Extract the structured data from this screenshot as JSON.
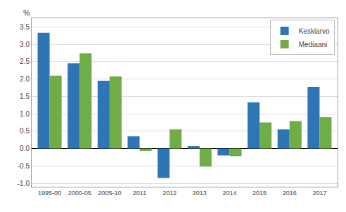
{
  "chart_data": {
    "type": "bar",
    "ylabel": "%",
    "categories": [
      "1995-00",
      "2000-05",
      "2005-10",
      "2011",
      "2012",
      "2013",
      "2014",
      "2015",
      "2016",
      "2017"
    ],
    "series": [
      {
        "name": "Keskiarvo",
        "color": "#2E75B6",
        "values": [
          3.33,
          2.45,
          1.95,
          0.35,
          -0.85,
          0.07,
          -0.2,
          1.33,
          0.55,
          1.77
        ]
      },
      {
        "name": "Mediaani",
        "color": "#70AD47",
        "values": [
          2.1,
          2.74,
          2.08,
          -0.07,
          0.55,
          -0.52,
          -0.22,
          0.75,
          0.79,
          0.9
        ]
      }
    ],
    "ylim": [
      -1.1,
      3.75
    ],
    "yticks": [
      {
        "value": -1.0,
        "label": "-1.0"
      },
      -0.5,
      {
        "value": 0.0,
        "label": "0.0"
      },
      0.5,
      {
        "value": 1.0,
        "label": "1.0"
      },
      1.5,
      {
        "value": 2.0,
        "label": "2.0"
      },
      2.5,
      {
        "value": 3.0,
        "label": "3.0"
      },
      3.5
    ],
    "grid": true,
    "legend": "upper right"
  }
}
